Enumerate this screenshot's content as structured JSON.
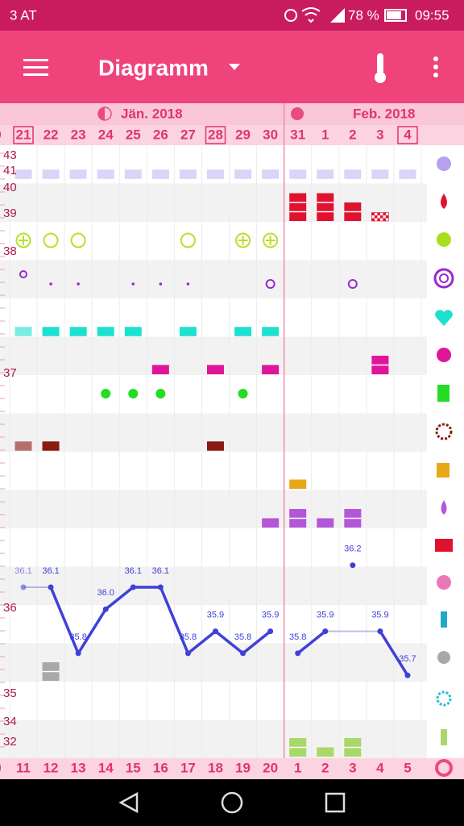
{
  "status_bar": {
    "carrier": "3 AT",
    "battery": "78 %",
    "time": "09:55"
  },
  "app_bar": {
    "title": "Diagramm"
  },
  "months": [
    {
      "label": "Jän. 2018"
    },
    {
      "label": "Feb. 2018"
    }
  ],
  "chart": {
    "edge_dates": {
      "top": "0",
      "bottom": "0"
    },
    "dates": [
      {
        "label": "21",
        "boxed": true
      },
      {
        "label": "22",
        "boxed": false
      },
      {
        "label": "23",
        "boxed": false
      },
      {
        "label": "24",
        "boxed": false
      },
      {
        "label": "25",
        "boxed": false
      },
      {
        "label": "26",
        "boxed": false
      },
      {
        "label": "27",
        "boxed": false
      },
      {
        "label": "28",
        "boxed": true
      },
      {
        "label": "29",
        "boxed": false
      },
      {
        "label": "30",
        "boxed": false
      },
      {
        "label": "31",
        "boxed": false
      },
      {
        "label": "1",
        "boxed": false
      },
      {
        "label": "2",
        "boxed": false
      },
      {
        "label": "3",
        "boxed": false
      },
      {
        "label": "4",
        "boxed": true
      }
    ],
    "cycle_days": [
      "11",
      "12",
      "13",
      "14",
      "15",
      "16",
      "17",
      "18",
      "19",
      "20",
      "1",
      "2",
      "3",
      "4",
      "5"
    ],
    "scale_labels": [
      "43",
      "41",
      "40",
      "39",
      "38",
      "37",
      "36",
      "35",
      "34",
      "32"
    ],
    "temperature": {
      "color": "#4040d8",
      "values": [
        36.1,
        36.1,
        35.8,
        36.0,
        36.1,
        36.1,
        35.8,
        35.9,
        35.8,
        35.9,
        35.8,
        35.9,
        36.2,
        35.9,
        35.7
      ],
      "value_labels": [
        "36.1",
        "36.1",
        "35.8",
        "36.0",
        "36.1",
        "36.1",
        "35.8",
        "35.9",
        "35.8",
        "35.9",
        "35.8",
        "35.9",
        "36.2",
        "35.9",
        "35.7"
      ],
      "excluded": [
        true,
        false,
        false,
        false,
        false,
        false,
        false,
        false,
        false,
        false,
        false,
        false,
        true,
        false,
        false
      ]
    },
    "rows": [
      {
        "style": "bar",
        "color": "#ddd2f8",
        "values": [
          1,
          1,
          1,
          1,
          1,
          1,
          1,
          1,
          1,
          1,
          1,
          1,
          1,
          1,
          1
        ]
      },
      {
        "style": "bleeding",
        "color": "#e0122f",
        "values": [
          null,
          null,
          null,
          null,
          null,
          null,
          null,
          null,
          null,
          null,
          3,
          3,
          2,
          1,
          null
        ]
      },
      {
        "style": "symbol",
        "color": "#b8e02a",
        "values": [
          "plus",
          "circle",
          "circle",
          null,
          null,
          null,
          "circle",
          null,
          "plus",
          "plus",
          null,
          null,
          null,
          null,
          null
        ]
      },
      {
        "style": "symbol",
        "color": "#9a28d0",
        "values": [
          "ring",
          "dot",
          "dot",
          null,
          "dot",
          "dot",
          "dot",
          null,
          null,
          "ring",
          null,
          null,
          "ring",
          null,
          null
        ]
      },
      {
        "style": "bar",
        "color": "#1ee0d0",
        "values": [
          1,
          1,
          1,
          1,
          1,
          null,
          1,
          null,
          1,
          1,
          null,
          null,
          null,
          null,
          null
        ]
      },
      {
        "style": "bar",
        "color": "#e0159a",
        "values": [
          null,
          null,
          null,
          null,
          null,
          1,
          null,
          1,
          null,
          1,
          null,
          null,
          null,
          2,
          null
        ]
      },
      {
        "style": "symbol",
        "color": "#22dd22",
        "values": [
          null,
          null,
          null,
          "dot",
          "dot",
          "dot",
          null,
          null,
          "dot",
          null,
          null,
          null,
          null,
          null,
          null
        ]
      },
      {
        "style": "bar",
        "color": "#8a1a12",
        "values": [
          1,
          1,
          null,
          null,
          null,
          null,
          null,
          1,
          null,
          null,
          null,
          null,
          null,
          null,
          null
        ]
      },
      {
        "style": "bar",
        "color": "#e8a818",
        "values": [
          null,
          null,
          null,
          null,
          null,
          null,
          null,
          null,
          null,
          null,
          1,
          null,
          null,
          null,
          null
        ]
      },
      {
        "style": "bar",
        "color": "#b456d8",
        "values": [
          null,
          null,
          null,
          null,
          null,
          null,
          null,
          null,
          null,
          1,
          2,
          1,
          2,
          null,
          null
        ]
      },
      {
        "style": "bar",
        "color": "#a8a8a8",
        "values": [
          null,
          2,
          null,
          null,
          null,
          null,
          null,
          null,
          null,
          null,
          null,
          null,
          null,
          null,
          null
        ]
      },
      {
        "style": "bar",
        "color": "#a8d868",
        "values": [
          null,
          null,
          null,
          null,
          null,
          null,
          null,
          null,
          null,
          null,
          2,
          1,
          2,
          null,
          null
        ]
      }
    ]
  }
}
